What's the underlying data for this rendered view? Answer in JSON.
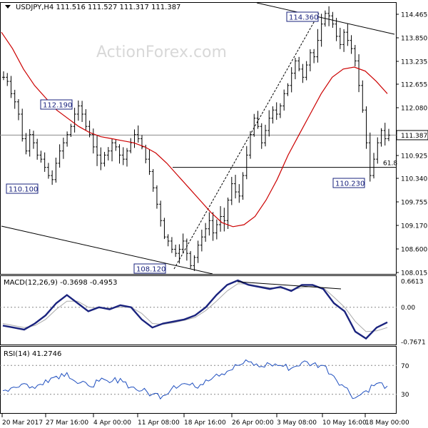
{
  "chart_data": [
    {
      "type": "ohlc",
      "panel": "price",
      "title": "USDJPY,H4  111.516 111.527 111.317 111.387",
      "watermark": "ActionForex.com",
      "x_labels": [
        "20 Mar 2017",
        "27 Mar 16:00",
        "4 Apr 00:00",
        "11 Apr 08:00",
        "18 Apr 16:00",
        "26 Apr 00:00",
        "3 May 08:00",
        "10 May 16:00",
        "18 May 00:00"
      ],
      "y_ticks": [
        "114.465",
        "113.850",
        "113.235",
        "112.655",
        "112.080",
        "111.387",
        "110.925",
        "110.340",
        "109.755",
        "109.170",
        "108.600",
        "108.015"
      ],
      "ylim": [
        108.015,
        114.6
      ],
      "current_price": 111.387,
      "annotations": [
        {
          "label": "114.360",
          "value": 114.36
        },
        {
          "label": "112.190",
          "value": 112.19
        },
        {
          "label": "110.100",
          "value": 110.1
        },
        {
          "label": "108.120",
          "value": 108.12
        },
        {
          "label": "110.230",
          "value": 110.23
        },
        {
          "label": "61.8",
          "value": 110.6
        }
      ],
      "close_series": [
        112.8,
        112.7,
        112.4,
        112.2,
        111.9,
        111.3,
        111.0,
        111.4,
        111.2,
        110.9,
        110.8,
        110.6,
        110.4,
        110.3,
        110.7,
        111.0,
        111.2,
        111.4,
        111.6,
        111.9,
        112.1,
        111.9,
        111.6,
        111.4,
        111.1,
        110.9,
        110.7,
        110.9,
        111.0,
        111.2,
        111.1,
        110.9,
        110.8,
        111.0,
        111.2,
        111.4,
        111.3,
        111.1,
        110.8,
        110.5,
        110.1,
        109.7,
        109.3,
        108.9,
        108.8,
        108.6,
        108.5,
        108.6,
        108.8,
        108.5,
        108.2,
        108.4,
        108.7,
        108.9,
        109.1,
        109.3,
        109.0,
        109.2,
        109.4,
        109.3,
        109.8,
        110.2,
        110.0,
        109.9,
        110.4,
        110.9,
        111.4,
        111.8,
        111.6,
        111.2,
        111.5,
        111.8,
        112.0,
        111.9,
        112.1,
        112.4,
        112.6,
        112.9,
        113.2,
        113.0,
        112.8,
        113.1,
        113.4,
        113.3,
        113.7,
        114.1,
        114.36,
        114.3,
        114.1,
        113.8,
        113.6,
        113.9,
        113.7,
        113.5,
        113.2,
        112.6,
        112.0,
        111.2,
        110.4,
        110.8,
        111.2,
        111.5,
        111.3,
        111.387
      ],
      "moving_average": [
        113.9,
        113.5,
        113.0,
        112.6,
        112.3,
        112.0,
        111.8,
        111.6,
        111.45,
        111.35,
        111.3,
        111.25,
        111.2,
        111.1,
        110.95,
        110.7,
        110.4,
        110.1,
        109.8,
        109.5,
        109.25,
        109.15,
        109.2,
        109.4,
        109.8,
        110.3,
        110.9,
        111.4,
        111.9,
        112.4,
        112.8,
        113.0,
        113.05,
        112.95,
        112.7,
        112.4
      ]
    },
    {
      "type": "line",
      "panel": "macd",
      "title": "MACD(12,26,9) -0.3698 -0.4953",
      "y_ticks": [
        "0.6613",
        "0.00",
        "-0.7671"
      ],
      "ylim": [
        -0.9,
        0.75
      ],
      "series": [
        {
          "name": "MACD",
          "values": [
            -0.45,
            -0.5,
            -0.55,
            -0.4,
            -0.2,
            0.1,
            0.3,
            0.1,
            -0.1,
            0.0,
            -0.05,
            0.05,
            0.0,
            -0.3,
            -0.5,
            -0.4,
            -0.35,
            -0.3,
            -0.2,
            0.0,
            0.3,
            0.55,
            0.66,
            0.55,
            0.5,
            0.45,
            0.5,
            0.4,
            0.55,
            0.55,
            0.45,
            0.1,
            -0.1,
            -0.6,
            -0.77,
            -0.5,
            -0.37
          ]
        },
        {
          "name": "Signal",
          "values": [
            -0.4,
            -0.45,
            -0.5,
            -0.45,
            -0.3,
            -0.05,
            0.15,
            0.15,
            0.0,
            -0.02,
            -0.02,
            0.0,
            0.0,
            -0.15,
            -0.4,
            -0.42,
            -0.38,
            -0.32,
            -0.25,
            -0.08,
            0.15,
            0.4,
            0.58,
            0.57,
            0.52,
            0.48,
            0.47,
            0.43,
            0.48,
            0.52,
            0.48,
            0.25,
            0.0,
            -0.35,
            -0.6,
            -0.58,
            -0.5
          ]
        }
      ]
    },
    {
      "type": "line",
      "panel": "rsi",
      "title": "RSI(14) 41.2746",
      "y_ticks": [
        "70",
        "30"
      ],
      "ylim": [
        5,
        95
      ],
      "series": [
        {
          "name": "RSI",
          "values": [
            35,
            40,
            45,
            38,
            50,
            55,
            60,
            45,
            42,
            48,
            46,
            52,
            40,
            35,
            30,
            28,
            42,
            45,
            40,
            50,
            58,
            62,
            70,
            75,
            68,
            72,
            70,
            66,
            74,
            72,
            70,
            55,
            40,
            25,
            35,
            45,
            41.27
          ]
        }
      ]
    }
  ],
  "colors": {
    "price_bars": "#000000",
    "moving_average": "#cc0000",
    "macd_line": "#1a237e",
    "signal_line": "#aaaaaa",
    "rsi_line": "#1f4fbf",
    "annotation_border": "#1a237e"
  }
}
